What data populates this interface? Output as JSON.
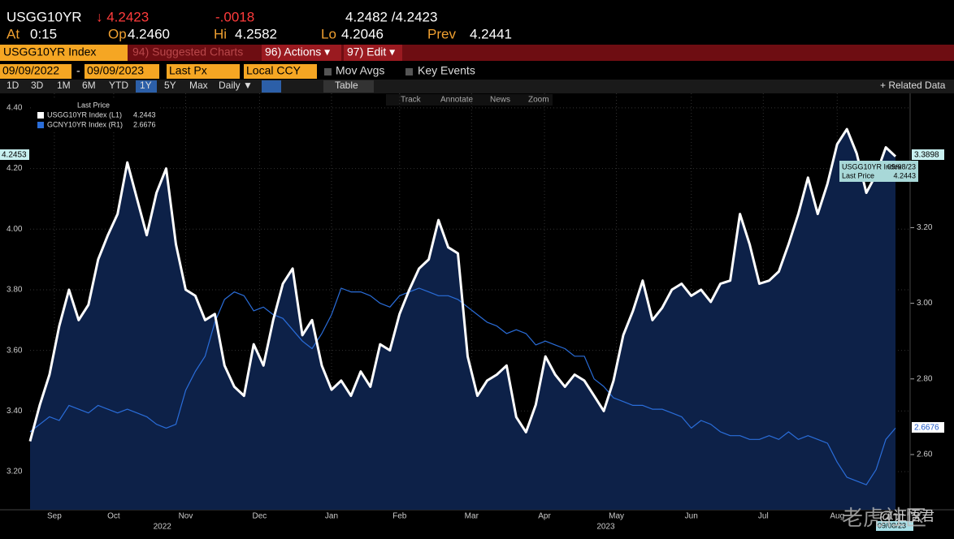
{
  "header": {
    "ticker": "USGG10YR",
    "last": "↓ 4.2423",
    "change": "-.0018",
    "bid_ask": "4.2482 /4.2423",
    "stats": [
      {
        "label": "At",
        "value": "0:15"
      },
      {
        "label": "Op",
        "value": "4.2460"
      },
      {
        "label": "Hi",
        "value": "4.2582"
      },
      {
        "label": "Lo",
        "value": "4.2046"
      },
      {
        "label": "Prev",
        "value": "4.2441"
      }
    ]
  },
  "toolbar": {
    "security": "USGG10YR Index",
    "menu": [
      "94) Suggested Charts",
      "96) Actions ▾",
      "97) Edit ▾"
    ],
    "start_date": "09/09/2022",
    "end_date": "09/09/2023",
    "field": "Last Px",
    "currency": "Local CCY",
    "options": [
      "Mov Avgs",
      "Key Events"
    ],
    "ranges": [
      "1D",
      "3D",
      "1M",
      "6M",
      "YTD",
      "1Y",
      "5Y",
      "Max",
      "Daily ▼"
    ],
    "table": "Table",
    "related": "+ Related Data",
    "tools": [
      "Track",
      "Annotate",
      "News",
      "Zoom"
    ]
  },
  "chart_data": {
    "type": "line",
    "legend_title": "Last Price",
    "xlim": [
      0,
      90.5
    ],
    "xticks": [
      {
        "value": 2.5,
        "label": "Sep"
      },
      {
        "value": 8.6,
        "label": "Oct"
      },
      {
        "value": 16,
        "label": "Nov"
      },
      {
        "value": 23.6,
        "label": "Dec"
      },
      {
        "value": 31,
        "label": "Jan"
      },
      {
        "value": 38,
        "label": "Feb"
      },
      {
        "value": 45.4,
        "label": "Mar"
      },
      {
        "value": 52.9,
        "label": "Apr"
      },
      {
        "value": 60.3,
        "label": "May"
      },
      {
        "value": 68,
        "label": "Jun"
      },
      {
        "value": 75.4,
        "label": "Jul"
      },
      {
        "value": 83,
        "label": "Aug"
      }
    ],
    "year_ticks": [
      {
        "value": 13.6,
        "label": "2022"
      },
      {
        "value": 59.2,
        "label": "2023"
      }
    ],
    "ylim": [
      3.074,
      4.448
    ],
    "yticks": [
      {
        "value": 3.2,
        "label": "3.20"
      },
      {
        "value": 3.4,
        "label": "3.40"
      },
      {
        "value": 3.6,
        "label": "3.60"
      },
      {
        "value": 3.8,
        "label": "3.80"
      },
      {
        "value": 4.0,
        "label": "4.00"
      },
      {
        "value": 4.2,
        "label": "4.20"
      },
      {
        "value": 4.4,
        "label": "4.40"
      }
    ],
    "y2lim": [
      2.454,
      3.555
    ],
    "y2ticks": [
      {
        "value": 2.6,
        "label": "2.60"
      },
      {
        "value": 2.8,
        "label": "2.80"
      },
      {
        "value": 3.0,
        "label": "3.00"
      },
      {
        "value": 3.2,
        "label": "3.20"
      }
    ],
    "grid": true,
    "series": [
      {
        "name": "USGG10YR Index  (L1)",
        "legend_value": "4.2443",
        "color": "#ffffff",
        "fill": "#0d2148",
        "axis": "y",
        "values": [
          3.3,
          3.42,
          3.52,
          3.68,
          3.8,
          3.7,
          3.75,
          3.9,
          3.98,
          4.05,
          4.22,
          4.1,
          3.98,
          4.12,
          4.2,
          3.95,
          3.8,
          3.78,
          3.7,
          3.72,
          3.55,
          3.48,
          3.45,
          3.62,
          3.55,
          3.7,
          3.82,
          3.87,
          3.65,
          3.7,
          3.55,
          3.47,
          3.5,
          3.45,
          3.53,
          3.48,
          3.62,
          3.6,
          3.72,
          3.8,
          3.87,
          3.9,
          4.03,
          3.94,
          3.92,
          3.58,
          3.45,
          3.5,
          3.52,
          3.55,
          3.38,
          3.33,
          3.42,
          3.58,
          3.52,
          3.48,
          3.52,
          3.5,
          3.45,
          3.4,
          3.5,
          3.65,
          3.73,
          3.83,
          3.7,
          3.74,
          3.8,
          3.82,
          3.78,
          3.8,
          3.76,
          3.82,
          3.83,
          4.05,
          3.95,
          3.82,
          3.83,
          3.86,
          3.95,
          4.05,
          4.17,
          4.05,
          4.15,
          4.28,
          4.33,
          4.25,
          4.12,
          4.18,
          4.27,
          4.24
        ]
      },
      {
        "name": "GCNY10YR Index  (R1)",
        "legend_value": "2.6676",
        "color": "#2a6dd9",
        "axis": "y2",
        "values": [
          2.66,
          2.68,
          2.7,
          2.69,
          2.73,
          2.72,
          2.71,
          2.73,
          2.72,
          2.71,
          2.72,
          2.71,
          2.7,
          2.68,
          2.67,
          2.68,
          2.77,
          2.82,
          2.86,
          2.95,
          3.01,
          3.03,
          3.02,
          2.98,
          2.99,
          2.97,
          2.96,
          2.93,
          2.9,
          2.88,
          2.92,
          2.97,
          3.04,
          3.03,
          3.03,
          3.02,
          3.0,
          2.99,
          3.02,
          3.03,
          3.04,
          3.03,
          3.02,
          3.02,
          3.01,
          2.99,
          2.97,
          2.95,
          2.94,
          2.92,
          2.93,
          2.92,
          2.89,
          2.9,
          2.89,
          2.88,
          2.86,
          2.86,
          2.8,
          2.78,
          2.75,
          2.74,
          2.73,
          2.73,
          2.72,
          2.72,
          2.71,
          2.7,
          2.67,
          2.69,
          2.68,
          2.66,
          2.65,
          2.65,
          2.64,
          2.64,
          2.65,
          2.64,
          2.66,
          2.64,
          2.65,
          2.64,
          2.63,
          2.58,
          2.54,
          2.53,
          2.52,
          2.56,
          2.64,
          2.67
        ]
      }
    ],
    "badges": {
      "left": "4.2453",
      "right_upper": "3.3898",
      "right_lower": "2.6676",
      "date": "09/08/23"
    },
    "tooltip": {
      "name": "USGG10YR Index",
      "date": "09/08/23",
      "field": "Last Price",
      "value": "4.2443"
    }
  },
  "watermark": {
    "brand": "老虎社区",
    "author": "@证悟君"
  }
}
